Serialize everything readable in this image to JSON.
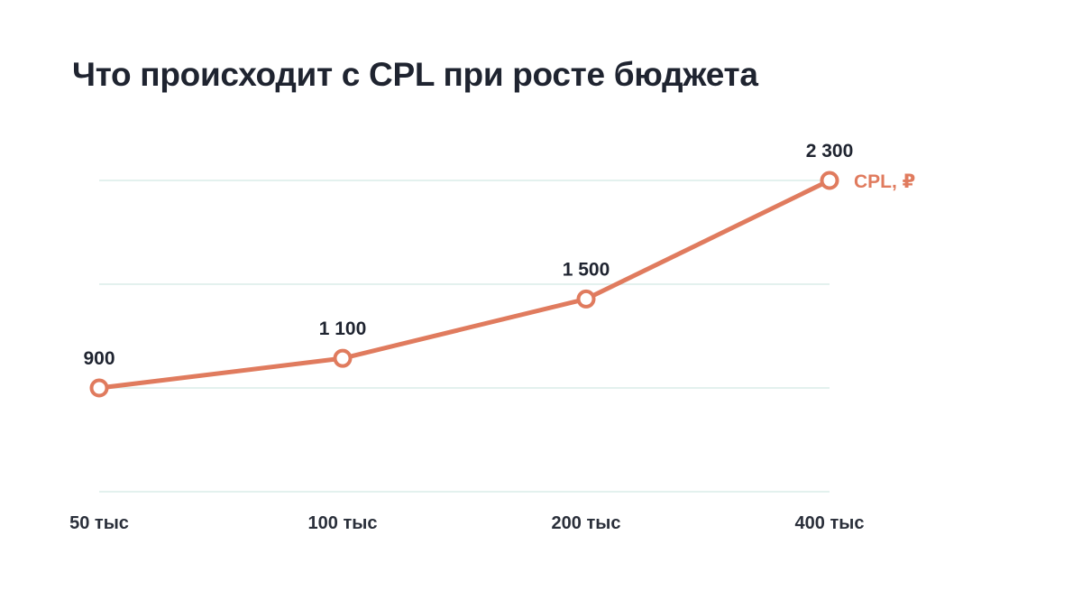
{
  "title": "Что происходит с CPL при росте бюджета",
  "chart_data": {
    "type": "line",
    "categories": [
      "50 тыс",
      "100 тыс",
      "200 тыс",
      "400 тыс"
    ],
    "series": [
      {
        "name": "CPL, ₽",
        "values": [
          900,
          1100,
          1500,
          2300
        ],
        "labels": [
          "900",
          "1 100",
          "1 500",
          "2 300"
        ],
        "color": "#e07b5e"
      }
    ],
    "ylim": [
      200,
      2300
    ],
    "grid": true,
    "legend_placement": "right-end-of-line"
  }
}
